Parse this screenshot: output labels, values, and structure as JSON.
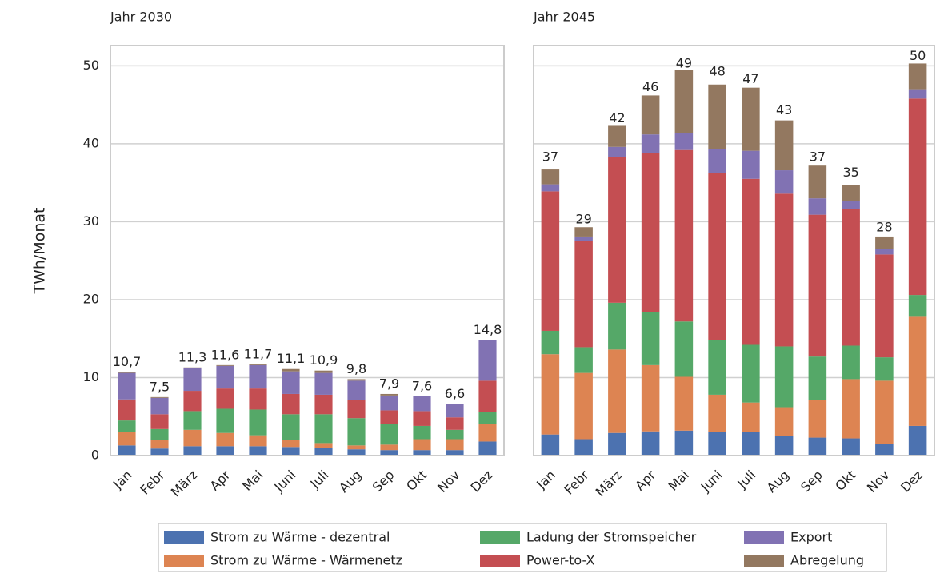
{
  "chart_data": [
    {
      "type": "bar",
      "stacked": true,
      "title": "Jahr 2030",
      "ylabel": "TWh/Monat",
      "categories": [
        "Jan",
        "Febr",
        "März",
        "Apr",
        "Mai",
        "Juni",
        "Juli",
        "Aug",
        "Sep",
        "Okt",
        "Nov",
        "Dez"
      ],
      "series": [
        {
          "name": "Strom zu Wärme - dezentral",
          "color": "#4c72b0",
          "values": [
            1.3,
            0.9,
            1.2,
            1.2,
            1.2,
            1.1,
            1.0,
            0.8,
            0.7,
            0.7,
            0.7,
            1.8
          ]
        },
        {
          "name": "Strom zu Wärme - Wärmenetz",
          "color": "#dd8452",
          "values": [
            1.7,
            1.1,
            2.1,
            1.7,
            1.4,
            0.9,
            0.6,
            0.5,
            0.7,
            1.4,
            1.4,
            2.3
          ]
        },
        {
          "name": "Ladung der Stromspeicher",
          "color": "#55a868",
          "values": [
            1.5,
            1.4,
            2.4,
            3.1,
            3.3,
            3.3,
            3.7,
            3.5,
            2.6,
            1.7,
            1.2,
            1.5
          ]
        },
        {
          "name": "Power-to-X",
          "color": "#c44e52",
          "values": [
            2.7,
            1.9,
            2.6,
            2.6,
            2.7,
            2.6,
            2.5,
            2.3,
            1.8,
            1.9,
            1.6,
            4.0
          ]
        },
        {
          "name": "Export",
          "color": "#8172b3",
          "values": [
            3.4,
            2.1,
            2.9,
            2.9,
            3.0,
            2.9,
            2.8,
            2.5,
            1.9,
            1.9,
            1.7,
            5.2
          ]
        },
        {
          "name": "Abregelung",
          "color": "#937860",
          "values": [
            0.1,
            0.1,
            0.1,
            0.1,
            0.1,
            0.3,
            0.3,
            0.2,
            0.2,
            0.0,
            0.0,
            0.0
          ]
        }
      ],
      "totals": [
        10.7,
        7.5,
        11.3,
        11.6,
        11.7,
        11.1,
        10.9,
        9.8,
        7.9,
        7.6,
        6.6,
        14.8
      ],
      "total_labels": [
        "10,7",
        "7,5",
        "11,3",
        "11,6",
        "11,7",
        "11,1",
        "10,9",
        "9,8",
        "7,9",
        "7,6",
        "6,6",
        "14,8"
      ],
      "ylim": [
        0,
        52.6
      ],
      "yticks": [
        0,
        10,
        20,
        30,
        40,
        50
      ],
      "grid": true
    },
    {
      "type": "bar",
      "stacked": true,
      "title": "Jahr 2045",
      "categories": [
        "Jan",
        "Febr",
        "März",
        "Apr",
        "Mai",
        "Juni",
        "Juli",
        "Aug",
        "Sep",
        "Okt",
        "Nov",
        "Dez"
      ],
      "series": [
        {
          "color": "#4c72b0",
          "values": [
            2.7,
            2.1,
            2.9,
            3.1,
            3.2,
            3.0,
            3.0,
            2.5,
            2.3,
            2.2,
            1.5,
            3.8
          ]
        },
        {
          "color": "#dd8452",
          "values": [
            10.3,
            8.5,
            10.7,
            8.5,
            6.9,
            4.8,
            3.8,
            3.7,
            4.8,
            7.6,
            8.1,
            14.0
          ]
        },
        {
          "color": "#55a868",
          "values": [
            3.0,
            3.3,
            6.0,
            6.8,
            7.1,
            7.0,
            7.4,
            7.8,
            5.6,
            4.3,
            3.0,
            2.8
          ]
        },
        {
          "color": "#c44e52",
          "values": [
            17.9,
            13.6,
            18.7,
            20.4,
            22.0,
            21.4,
            21.3,
            19.6,
            18.2,
            17.5,
            13.2,
            25.2
          ]
        },
        {
          "color": "#8172b3",
          "values": [
            0.9,
            0.6,
            1.3,
            2.4,
            2.2,
            3.1,
            3.6,
            3.0,
            2.1,
            1.1,
            0.7,
            1.2
          ]
        },
        {
          "color": "#937860",
          "values": [
            1.9,
            1.2,
            2.7,
            5.0,
            8.1,
            8.3,
            8.1,
            6.4,
            4.2,
            2.0,
            1.6,
            3.3
          ]
        }
      ],
      "totals": [
        37,
        29,
        42,
        46,
        49,
        48,
        47,
        43,
        37,
        35,
        28,
        50
      ],
      "ylim": [
        0,
        52.6
      ],
      "yticks": [
        0,
        10,
        20,
        30,
        40,
        50
      ],
      "grid": true
    }
  ]
}
